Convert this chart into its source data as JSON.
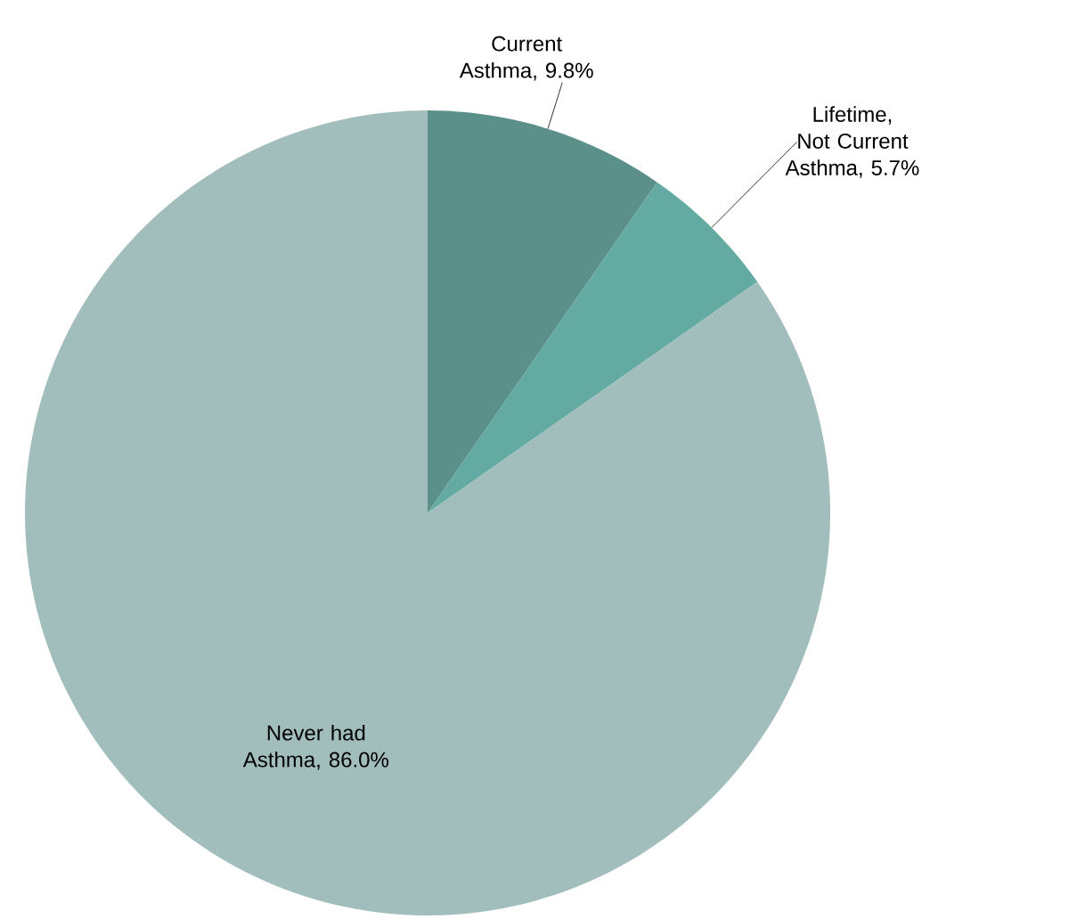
{
  "chart_data": {
    "type": "pie",
    "categories": [
      "Current Asthma, 9.8%",
      "Lifetime, Not Current Asthma, 5.7%",
      "Never had Asthma, 86.0%"
    ],
    "values": [
      9.8,
      5.7,
      86.0
    ],
    "colors": [
      "#5b8f8a",
      "#62aaa2",
      "#a2bebc"
    ]
  }
}
